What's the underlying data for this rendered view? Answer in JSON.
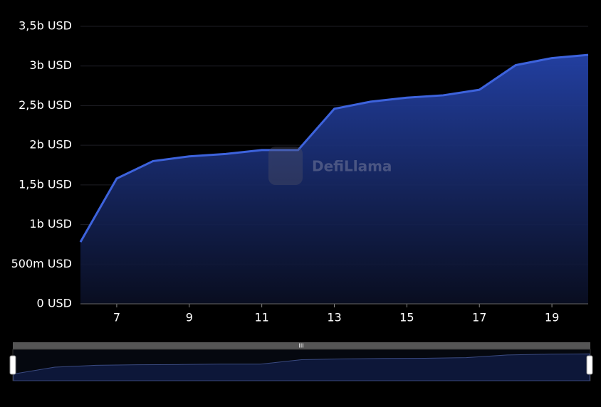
{
  "chart_data": {
    "type": "area",
    "watermark": "DefiLlama",
    "x": [
      6,
      7,
      8,
      9,
      10,
      11,
      12,
      13,
      14,
      15,
      16,
      17,
      18,
      19,
      20
    ],
    "values": [
      780000000,
      1580000000,
      1800000000,
      1860000000,
      1890000000,
      1940000000,
      1940000000,
      2460000000,
      2550000000,
      2600000000,
      2630000000,
      2700000000,
      3010000000,
      3100000000,
      3140000000
    ],
    "color": "#3d63dd",
    "xlim": [
      6,
      20
    ],
    "xticks": [
      7,
      9,
      11,
      13,
      15,
      17,
      19
    ],
    "ylim": [
      0,
      3500000000
    ],
    "yticks": [
      {
        "value": 0,
        "label": "0 USD"
      },
      {
        "value": 500000000,
        "label": "500m USD"
      },
      {
        "value": 1000000000,
        "label": "1b USD"
      },
      {
        "value": 1500000000,
        "label": "1,5b USD"
      },
      {
        "value": 2000000000,
        "label": "2b USD"
      },
      {
        "value": 2500000000,
        "label": "2,5b USD"
      },
      {
        "value": 3000000000,
        "label": "3b USD"
      },
      {
        "value": 3500000000,
        "label": "3,5b USD"
      }
    ],
    "grid": true
  }
}
